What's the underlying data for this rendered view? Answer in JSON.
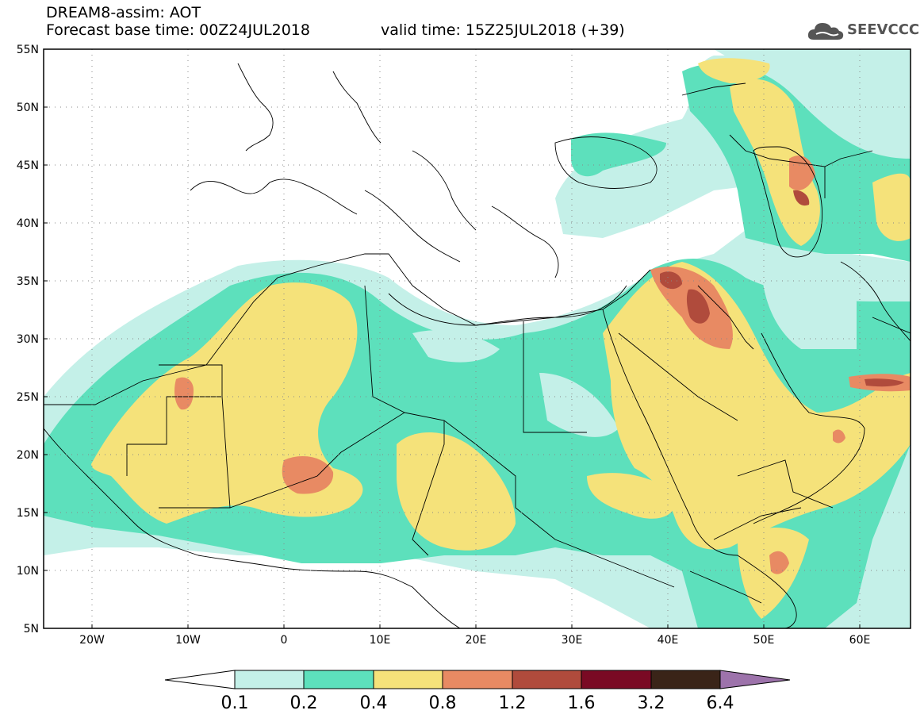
{
  "header": {
    "title": "DREAM8-assim: AOT",
    "base_time": "Forecast base time: 00Z24JUL2018",
    "valid_time": "valid time: 15Z25JUL2018 (+39)"
  },
  "logo": {
    "text": "SEEVCCC",
    "icon": "cloud-icon"
  },
  "map": {
    "lat_labels": [
      "55N",
      "50N",
      "45N",
      "40N",
      "35N",
      "30N",
      "25N",
      "20N",
      "15N",
      "10N",
      "5N"
    ],
    "lon_labels": [
      "20W",
      "10W",
      "0",
      "10E",
      "20E",
      "30E",
      "40E",
      "50E",
      "60E"
    ],
    "lon_range": [
      -25,
      65
    ],
    "lat_range": [
      5,
      55
    ],
    "field": "Aerosol optical thickness (AOT)"
  },
  "colorbar": {
    "labels": [
      "0.1",
      "0.2",
      "0.4",
      "0.8",
      "1.2",
      "1.6",
      "3.2",
      "6.4"
    ],
    "colors": [
      "#ffffff",
      "#c4f0e8",
      "#5de0bc",
      "#f5e27a",
      "#e88a63",
      "#b04b3c",
      "#7a0a24",
      "#3a2418",
      "#9d73ab"
    ]
  }
}
